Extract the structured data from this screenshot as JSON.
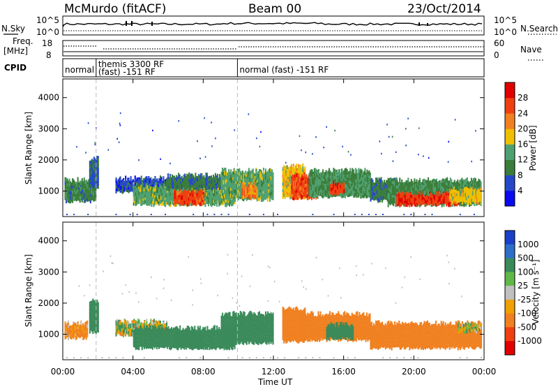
{
  "header": {
    "station": "McMurdo (fitACF)",
    "beam": "Beam 00",
    "date": "23/Oct/2014"
  },
  "top_panels": {
    "nsky_label": "N.Sky",
    "nsearch_label": "N.Search",
    "nsky_ticks": [
      "10^5",
      "10^0"
    ],
    "nsearch_ticks": [
      "10^5",
      "10^0"
    ],
    "freq_label_1": "Freq.",
    "freq_label_2": "[MHz]",
    "freq_ticks": [
      "18",
      "8"
    ],
    "nave_label": "Nave",
    "nave_ticks": [
      "60",
      "0"
    ],
    "cpid_label": "CPID",
    "cpid_segments": [
      {
        "label": "normal",
        "start_h": 0.0,
        "end_h": 1.9
      },
      {
        "label": "themis 3300 RF",
        "label2": "(fast) -151 RF",
        "start_h": 1.9,
        "end_h": 9.95
      },
      {
        "label": "normal (fast) -151 RF",
        "start_h": 9.95,
        "end_h": 24.0
      }
    ]
  },
  "chart_data": [
    {
      "type": "heatmap",
      "title": "",
      "xlabel": "Time UT",
      "ylabel": "Slant Range [km]",
      "xlim_hours": [
        0,
        24
      ],
      "ylim_km": [
        180,
        4600
      ],
      "x_ticks": [
        "00:00",
        "04:00",
        "08:00",
        "12:00",
        "16:00",
        "20:00",
        "00:00"
      ],
      "y_ticks": [
        1000,
        2000,
        3000,
        4000
      ],
      "colorbar": {
        "label": "Power [dB]",
        "tick_labels": [
          "4",
          "8",
          "12",
          "16",
          "20",
          "24",
          "28"
        ],
        "colors": [
          "#0a0af0",
          "#2548c8",
          "#3a7d3a",
          "#4fa070",
          "#f0c000",
          "#f08020",
          "#f04010",
          "#e00000"
        ]
      },
      "echo_regions": [
        {
          "t0": 0.1,
          "t1": 1.9,
          "r0": 600,
          "r1": 1450,
          "v": 10
        },
        {
          "t0": 1.5,
          "t1": 2.0,
          "r0": 1000,
          "r1": 2150,
          "v": 7
        },
        {
          "t0": 3.0,
          "t1": 5.9,
          "r0": 900,
          "r1": 1500,
          "v": 6
        },
        {
          "t0": 4.0,
          "t1": 9.8,
          "r0": 480,
          "r1": 1300,
          "v": 14
        },
        {
          "t0": 6.3,
          "t1": 8.0,
          "r0": 500,
          "r1": 1100,
          "v": 26
        },
        {
          "t0": 5.9,
          "t1": 9.0,
          "r0": 1000,
          "r1": 1600,
          "v": 9
        },
        {
          "t0": 9.0,
          "t1": 12.0,
          "r0": 650,
          "r1": 1750,
          "v": 14
        },
        {
          "t0": 10.2,
          "t1": 11.0,
          "r0": 700,
          "r1": 1300,
          "v": 22
        },
        {
          "t0": 12.5,
          "t1": 13.8,
          "r0": 700,
          "r1": 1900,
          "v": 18
        },
        {
          "t0": 13.0,
          "t1": 14.5,
          "r0": 700,
          "r1": 1600,
          "v": 26
        },
        {
          "t0": 14.0,
          "t1": 17.5,
          "r0": 750,
          "r1": 1750,
          "v": 12
        },
        {
          "t0": 15.2,
          "t1": 16.0,
          "r0": 850,
          "r1": 1350,
          "v": 27
        },
        {
          "t0": 17.5,
          "t1": 19.0,
          "r0": 620,
          "r1": 1450,
          "v": 9
        },
        {
          "t0": 18.5,
          "t1": 23.8,
          "r0": 480,
          "r1": 1450,
          "v": 11
        },
        {
          "t0": 19.0,
          "t1": 22.5,
          "r0": 480,
          "r1": 1000,
          "v": 27
        },
        {
          "t0": 22.0,
          "t1": 23.8,
          "r0": 550,
          "r1": 1150,
          "v": 18
        }
      ]
    },
    {
      "type": "heatmap",
      "title": "",
      "xlabel": "Time UT",
      "ylabel": "Slant Range [km]",
      "xlim_hours": [
        0,
        24
      ],
      "ylim_km": [
        180,
        4600
      ],
      "x_ticks": [
        "00:00",
        "04:00",
        "08:00",
        "12:00",
        "16:00",
        "20:00",
        "00:00"
      ],
      "y_ticks": [
        1000,
        2000,
        3000,
        4000
      ],
      "colorbar": {
        "label": "Velocity [m s⁻¹]",
        "tick_labels": [
          "1000",
          "500",
          "100",
          "25",
          "-25",
          "-100",
          "-500",
          "-1000"
        ],
        "colors": [
          "#1a3fc8",
          "#2c6ec8",
          "#3a8a5a",
          "#60b848",
          "#c0c0c0",
          "#f0a000",
          "#f08020",
          "#f04010",
          "#e00000"
        ]
      },
      "echo_regions": [
        {
          "t0": 0.1,
          "t1": 1.4,
          "r0": 800,
          "r1": 1450,
          "v": -150
        },
        {
          "t0": 1.5,
          "t1": 2.0,
          "r0": 1000,
          "r1": 2150,
          "v": 300
        },
        {
          "t0": 3.0,
          "t1": 5.9,
          "r0": 900,
          "r1": 1500,
          "v": 20
        },
        {
          "t0": 4.0,
          "t1": 9.8,
          "r0": 480,
          "r1": 1300,
          "v": 250
        },
        {
          "t0": 6.3,
          "t1": 8.0,
          "r0": 500,
          "r1": 1100,
          "v": 350
        },
        {
          "t0": 9.0,
          "t1": 12.0,
          "r0": 650,
          "r1": 1750,
          "v": 280
        },
        {
          "t0": 12.5,
          "t1": 13.8,
          "r0": 700,
          "r1": 1900,
          "v": -300
        },
        {
          "t0": 13.5,
          "t1": 17.5,
          "r0": 750,
          "r1": 1750,
          "v": -250
        },
        {
          "t0": 15.0,
          "t1": 16.5,
          "r0": 800,
          "r1": 1400,
          "v": 300
        },
        {
          "t0": 17.5,
          "t1": 23.8,
          "r0": 480,
          "r1": 1450,
          "v": -300
        },
        {
          "t0": 22.5,
          "t1": 23.8,
          "r0": 1000,
          "r1": 1400,
          "v": 0
        }
      ]
    }
  ]
}
